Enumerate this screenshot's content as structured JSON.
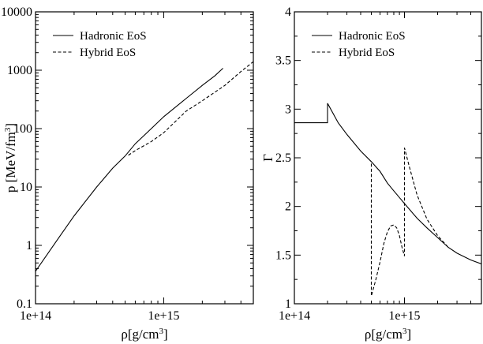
{
  "chart_data": [
    {
      "type": "line",
      "xlabel": "ρ[g/cm³]",
      "ylabel": "p [MeV/fm³]",
      "xscale": "log",
      "yscale": "log",
      "xlim": [
        100000000000000.0,
        5000000000000000.0
      ],
      "ylim": [
        0.1,
        10000
      ],
      "xticks": [
        {
          "value": 100000000000000.0,
          "label": "1e+14"
        },
        {
          "value": 1000000000000000.0,
          "label": "1e+15"
        }
      ],
      "yticks": [
        {
          "value": 0.1,
          "label": "0.1"
        },
        {
          "value": 1,
          "label": "1"
        },
        {
          "value": 10,
          "label": "10"
        },
        {
          "value": 100,
          "label": "100"
        },
        {
          "value": 1000,
          "label": "1000"
        },
        {
          "value": 10000,
          "label": "10000"
        }
      ],
      "grid": false,
      "legend": "top-left",
      "series": [
        {
          "name": "Hadronic EoS",
          "style": "solid",
          "x": [
            100000000000000.0,
            150000000000000.0,
            200000000000000.0,
            300000000000000.0,
            400000000000000.0,
            500000000000000.0,
            600000000000000.0,
            800000000000000.0,
            1000000000000000.0,
            1500000000000000.0,
            2000000000000000.0,
            2500000000000000.0,
            2900000000000000.0
          ],
          "y": [
            0.36,
            1.3,
            3.2,
            10,
            21,
            34,
            55,
            100,
            160,
            330,
            550,
            800,
            1080
          ]
        },
        {
          "name": "Hybrid EoS",
          "style": "dashed",
          "x": [
            530000000000000.0,
            600000000000000.0,
            800000000000000.0,
            1000000000000000.0,
            1200000000000000.0,
            1500000000000000.0,
            2000000000000000.0,
            3000000000000000.0,
            4000000000000000.0,
            5000000000000000.0
          ],
          "y": [
            35,
            42,
            60,
            85,
            125,
            200,
            300,
            550,
            950,
            1400
          ]
        }
      ]
    },
    {
      "type": "line",
      "xlabel": "ρ[g/cm³]",
      "ylabel": "Γ",
      "xscale": "log",
      "yscale": "linear",
      "xlim": [
        100000000000000.0,
        5000000000000000.0
      ],
      "ylim": [
        1,
        4
      ],
      "xticks": [
        {
          "value": 100000000000000.0,
          "label": "1e+14"
        },
        {
          "value": 1000000000000000.0,
          "label": "1e+15"
        }
      ],
      "yticks": [
        {
          "value": 1,
          "label": "1"
        },
        {
          "value": 1.5,
          "label": "1.5"
        },
        {
          "value": 2,
          "label": "2"
        },
        {
          "value": 2.5,
          "label": "2.5"
        },
        {
          "value": 3,
          "label": "3"
        },
        {
          "value": 3.5,
          "label": "3.5"
        },
        {
          "value": 4,
          "label": "4"
        }
      ],
      "grid": false,
      "legend": "top-left",
      "series": [
        {
          "name": "Hadronic EoS",
          "style": "solid",
          "x": [
            100000000000000.0,
            199000000000000.0,
            200000000000000.0,
            200100000000000.0,
            250000000000000.0,
            300000000000000.0,
            400000000000000.0,
            500000000000000.0,
            600000000000000.0,
            700000000000000.0,
            800000000000000.0,
            1000000000000000.0,
            1300000000000000.0,
            1600000000000000.0,
            2000000000000000.0,
            2500000000000000.0,
            3000000000000000.0,
            4000000000000000.0,
            5000000000000000.0
          ],
          "y": [
            2.86,
            2.86,
            2.86,
            3.06,
            2.86,
            2.74,
            2.57,
            2.46,
            2.36,
            2.24,
            2.16,
            2.03,
            1.88,
            1.78,
            1.68,
            1.58,
            1.52,
            1.45,
            1.41
          ]
        },
        {
          "name": "Hybrid EoS",
          "style": "dashed",
          "x": [
            500000000000000.0,
            500000000000000.0,
            500100000000000.0,
            550000000000000.0,
            600000000000000.0,
            650000000000000.0,
            700000000000000.0,
            750000000000000.0,
            800000000000000.0,
            850000000000000.0,
            900000000000000.0,
            950000000000000.0,
            1000000000000000.0,
            1000000000000000.0,
            1001000000000000.0,
            1100000000000000.0,
            1300000000000000.0,
            1600000000000000.0,
            2000000000000000.0,
            2500000000000000.0
          ],
          "y": [
            2.44,
            1.08,
            1.08,
            1.25,
            1.43,
            1.62,
            1.74,
            1.8,
            1.81,
            1.78,
            1.7,
            1.58,
            1.49,
            2.6,
            2.6,
            2.42,
            2.12,
            1.87,
            1.7,
            1.58
          ]
        }
      ]
    }
  ]
}
